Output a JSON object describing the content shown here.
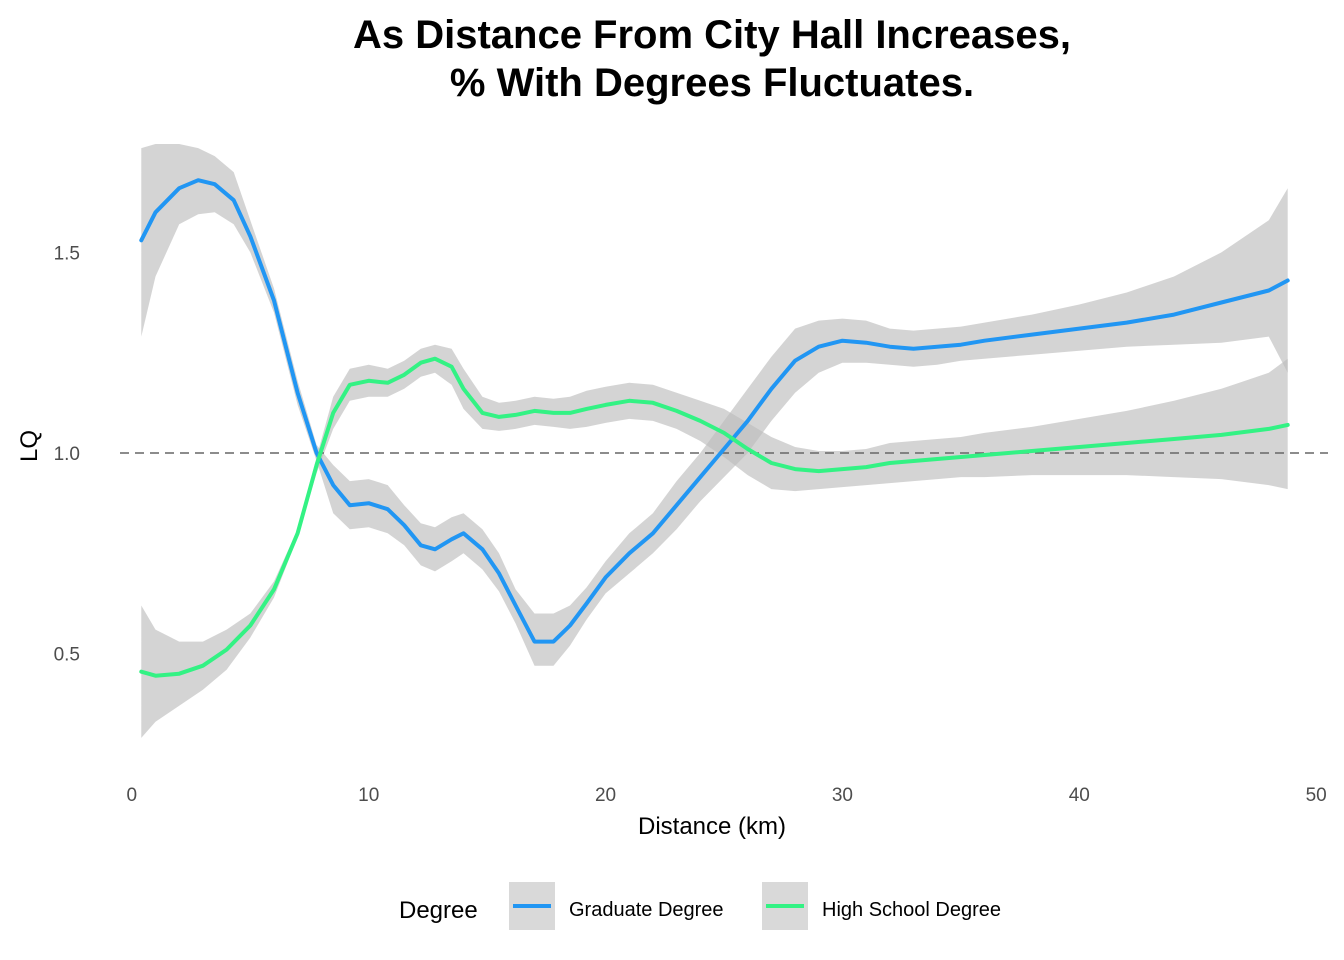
{
  "chart_data": {
    "type": "line",
    "title_lines": [
      "As Distance From City Hall Increases,",
      "% With Degrees Fluctuates."
    ],
    "xlabel": "Distance (km)",
    "ylabel": "LQ",
    "xlim": [
      -0.5,
      50.5
    ],
    "ylim": [
      0.21,
      1.8
    ],
    "x_ticks": [
      0,
      10,
      20,
      30,
      40,
      50
    ],
    "y_ticks": [
      0.5,
      1.0,
      1.5
    ],
    "y_tick_labels": [
      "0.5",
      "1.0",
      "1.5"
    ],
    "grid": false,
    "reference_line": {
      "y": 1.0,
      "style": "dashed",
      "color": "#666666"
    },
    "ribbon_color": "#bdbdbd",
    "legend": {
      "title": "Degree",
      "position": "bottom",
      "entries": [
        {
          "label": "Graduate Degree",
          "color": "#2196F3"
        },
        {
          "label": "High School Degree",
          "color": "#33F284"
        }
      ]
    },
    "series": [
      {
        "name": "Graduate Degree",
        "color": "#2196F3",
        "x": [
          0.4,
          1.0,
          2.0,
          2.8,
          3.5,
          4.3,
          5.0,
          6.0,
          7.0,
          7.8,
          8.5,
          9.2,
          10.0,
          10.8,
          11.5,
          12.2,
          12.8,
          13.5,
          14.0,
          14.8,
          15.5,
          16.2,
          17.0,
          17.8,
          18.5,
          19.2,
          20.0,
          21.0,
          22.0,
          23.0,
          24.0,
          25.0,
          26.0,
          27.0,
          28.0,
          29.0,
          30.0,
          31.0,
          32.0,
          33.0,
          34.0,
          35.0,
          36.0,
          38.0,
          40.0,
          42.0,
          44.0,
          46.0,
          48.0,
          48.8
        ],
        "y": [
          1.53,
          1.6,
          1.66,
          1.68,
          1.67,
          1.63,
          1.54,
          1.38,
          1.15,
          1.0,
          0.92,
          0.87,
          0.875,
          0.86,
          0.82,
          0.77,
          0.76,
          0.785,
          0.8,
          0.76,
          0.7,
          0.62,
          0.53,
          0.53,
          0.57,
          0.625,
          0.69,
          0.75,
          0.8,
          0.87,
          0.94,
          1.01,
          1.08,
          1.16,
          1.23,
          1.265,
          1.28,
          1.275,
          1.265,
          1.26,
          1.265,
          1.27,
          1.28,
          1.295,
          1.31,
          1.325,
          1.345,
          1.375,
          1.405,
          1.43
        ],
        "lower": [
          1.29,
          1.44,
          1.57,
          1.595,
          1.6,
          1.57,
          1.5,
          1.35,
          1.12,
          0.98,
          0.85,
          0.81,
          0.815,
          0.8,
          0.77,
          0.72,
          0.705,
          0.73,
          0.75,
          0.71,
          0.655,
          0.575,
          0.47,
          0.47,
          0.52,
          0.585,
          0.65,
          0.7,
          0.75,
          0.81,
          0.88,
          0.94,
          1.0,
          1.08,
          1.15,
          1.2,
          1.225,
          1.225,
          1.22,
          1.215,
          1.22,
          1.23,
          1.235,
          1.245,
          1.255,
          1.265,
          1.27,
          1.275,
          1.29,
          1.2
        ],
        "upper": [
          1.76,
          1.77,
          1.77,
          1.76,
          1.74,
          1.7,
          1.58,
          1.41,
          1.18,
          1.02,
          0.97,
          0.93,
          0.935,
          0.92,
          0.87,
          0.825,
          0.815,
          0.84,
          0.85,
          0.81,
          0.75,
          0.66,
          0.6,
          0.6,
          0.62,
          0.665,
          0.73,
          0.8,
          0.85,
          0.93,
          1.0,
          1.08,
          1.16,
          1.24,
          1.31,
          1.33,
          1.335,
          1.33,
          1.31,
          1.305,
          1.31,
          1.315,
          1.325,
          1.345,
          1.37,
          1.4,
          1.44,
          1.5,
          1.58,
          1.66
        ]
      },
      {
        "name": "High School Degree",
        "color": "#33F284",
        "x": [
          0.4,
          1.0,
          2.0,
          3.0,
          4.0,
          5.0,
          6.0,
          7.0,
          7.8,
          8.5,
          9.2,
          10.0,
          10.8,
          11.5,
          12.2,
          12.8,
          13.5,
          14.0,
          14.8,
          15.5,
          16.2,
          17.0,
          17.8,
          18.5,
          19.2,
          20.0,
          21.0,
          22.0,
          23.0,
          24.0,
          25.0,
          26.0,
          27.0,
          28.0,
          29.0,
          30.0,
          31.0,
          32.0,
          33.0,
          34.0,
          35.0,
          36.0,
          38.0,
          40.0,
          42.0,
          44.0,
          46.0,
          48.0,
          48.8
        ],
        "y": [
          0.455,
          0.445,
          0.45,
          0.47,
          0.51,
          0.57,
          0.66,
          0.8,
          0.97,
          1.1,
          1.17,
          1.18,
          1.175,
          1.195,
          1.225,
          1.235,
          1.215,
          1.16,
          1.1,
          1.09,
          1.095,
          1.105,
          1.1,
          1.1,
          1.11,
          1.12,
          1.13,
          1.125,
          1.105,
          1.08,
          1.05,
          1.01,
          0.975,
          0.96,
          0.955,
          0.96,
          0.965,
          0.975,
          0.98,
          0.985,
          0.99,
          0.995,
          1.005,
          1.015,
          1.025,
          1.035,
          1.045,
          1.06,
          1.07
        ],
        "lower": [
          0.29,
          0.33,
          0.37,
          0.41,
          0.46,
          0.54,
          0.64,
          0.79,
          0.95,
          1.06,
          1.13,
          1.14,
          1.14,
          1.16,
          1.19,
          1.2,
          1.17,
          1.11,
          1.06,
          1.055,
          1.06,
          1.07,
          1.065,
          1.06,
          1.065,
          1.075,
          1.085,
          1.08,
          1.06,
          1.03,
          0.99,
          0.945,
          0.91,
          0.905,
          0.91,
          0.915,
          0.92,
          0.925,
          0.93,
          0.935,
          0.94,
          0.94,
          0.945,
          0.945,
          0.945,
          0.94,
          0.935,
          0.92,
          0.91
        ],
        "upper": [
          0.62,
          0.56,
          0.53,
          0.53,
          0.56,
          0.6,
          0.68,
          0.81,
          0.99,
          1.14,
          1.21,
          1.22,
          1.21,
          1.23,
          1.26,
          1.27,
          1.26,
          1.21,
          1.14,
          1.125,
          1.13,
          1.14,
          1.135,
          1.14,
          1.155,
          1.165,
          1.175,
          1.17,
          1.15,
          1.13,
          1.11,
          1.075,
          1.04,
          1.015,
          1.005,
          1.005,
          1.01,
          1.025,
          1.03,
          1.035,
          1.04,
          1.05,
          1.065,
          1.085,
          1.105,
          1.13,
          1.16,
          1.2,
          1.235
        ]
      }
    ]
  }
}
